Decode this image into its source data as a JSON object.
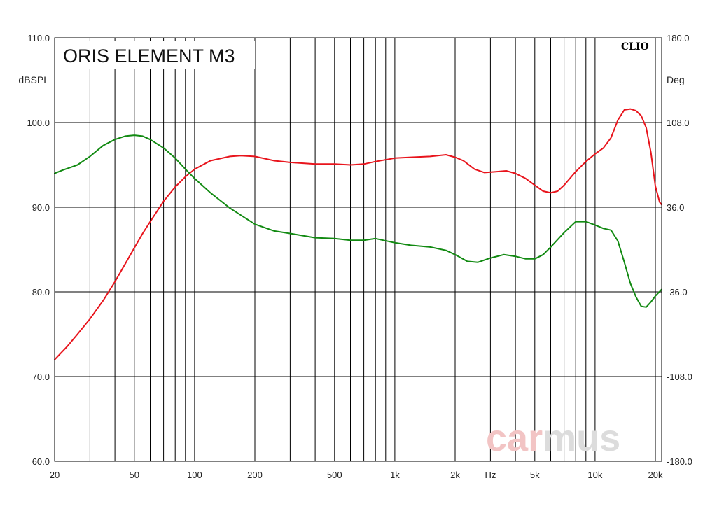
{
  "chart_data": {
    "type": "line",
    "title": "ORIS ELEMENT M3",
    "brand": "CLIO",
    "watermark": {
      "part1": "car",
      "part2": "mus",
      "color1": "#f2c4c4",
      "color2": "#dcdcdc"
    },
    "xlabel": "Hz",
    "ylabel_left": "dBSPL",
    "ylabel_right": "Deg",
    "xscale": "log",
    "xlim": [
      20,
      21500
    ],
    "ylim_left": [
      60,
      110
    ],
    "ylim_right": [
      -180,
      180
    ],
    "grid": true,
    "x_ticks": [
      "20",
      "50",
      "100",
      "200",
      "500",
      "1k",
      "2k",
      "Hz",
      "5k",
      "10k",
      "20k"
    ],
    "y_ticks_left": [
      "110.0",
      "100.0",
      "90.0",
      "80.0",
      "70.0",
      "60.0"
    ],
    "y_ticks_right": [
      "180.0",
      "108.0",
      "36.0",
      "-36.0",
      "-108.0",
      "-180.0"
    ],
    "series": [
      {
        "color": "#e8141c",
        "axis": "left",
        "points": [
          [
            20,
            72.0
          ],
          [
            23,
            73.5
          ],
          [
            26,
            75.0
          ],
          [
            30,
            76.8
          ],
          [
            35,
            79.0
          ],
          [
            40,
            81.2
          ],
          [
            45,
            83.3
          ],
          [
            50,
            85.2
          ],
          [
            55,
            86.9
          ],
          [
            60,
            88.3
          ],
          [
            70,
            90.7
          ],
          [
            80,
            92.4
          ],
          [
            90,
            93.6
          ],
          [
            100,
            94.5
          ],
          [
            120,
            95.5
          ],
          [
            150,
            96.0
          ],
          [
            170,
            96.1
          ],
          [
            200,
            96.0
          ],
          [
            250,
            95.5
          ],
          [
            300,
            95.3
          ],
          [
            400,
            95.1
          ],
          [
            500,
            95.1
          ],
          [
            600,
            95.0
          ],
          [
            700,
            95.1
          ],
          [
            800,
            95.4
          ],
          [
            1000,
            95.8
          ],
          [
            1200,
            95.9
          ],
          [
            1500,
            96.0
          ],
          [
            1800,
            96.2
          ],
          [
            2000,
            95.9
          ],
          [
            2200,
            95.5
          ],
          [
            2500,
            94.5
          ],
          [
            2800,
            94.1
          ],
          [
            3200,
            94.2
          ],
          [
            3600,
            94.3
          ],
          [
            4000,
            94.0
          ],
          [
            4500,
            93.4
          ],
          [
            5000,
            92.6
          ],
          [
            5500,
            91.9
          ],
          [
            6000,
            91.7
          ],
          [
            6500,
            91.9
          ],
          [
            7000,
            92.6
          ],
          [
            8000,
            94.2
          ],
          [
            9000,
            95.4
          ],
          [
            10000,
            96.3
          ],
          [
            11000,
            97.0
          ],
          [
            12000,
            98.2
          ],
          [
            13000,
            100.3
          ],
          [
            14000,
            101.5
          ],
          [
            15000,
            101.6
          ],
          [
            16000,
            101.4
          ],
          [
            17000,
            100.8
          ],
          [
            18000,
            99.4
          ],
          [
            19000,
            96.5
          ],
          [
            20000,
            92.5
          ],
          [
            21000,
            90.6
          ],
          [
            21500,
            90.3
          ]
        ]
      },
      {
        "color": "#128a12",
        "axis": "left",
        "points": [
          [
            20,
            94.0
          ],
          [
            22,
            94.4
          ],
          [
            24,
            94.7
          ],
          [
            26,
            95.0
          ],
          [
            30,
            96.0
          ],
          [
            35,
            97.3
          ],
          [
            40,
            98.0
          ],
          [
            45,
            98.4
          ],
          [
            50,
            98.5
          ],
          [
            55,
            98.4
          ],
          [
            60,
            98.0
          ],
          [
            70,
            97.0
          ],
          [
            80,
            95.8
          ],
          [
            90,
            94.5
          ],
          [
            100,
            93.4
          ],
          [
            120,
            91.7
          ],
          [
            150,
            89.9
          ],
          [
            200,
            88.0
          ],
          [
            250,
            87.2
          ],
          [
            300,
            86.9
          ],
          [
            400,
            86.4
          ],
          [
            500,
            86.3
          ],
          [
            600,
            86.1
          ],
          [
            700,
            86.1
          ],
          [
            800,
            86.3
          ],
          [
            1000,
            85.8
          ],
          [
            1200,
            85.5
          ],
          [
            1500,
            85.3
          ],
          [
            1800,
            84.9
          ],
          [
            2000,
            84.4
          ],
          [
            2300,
            83.6
          ],
          [
            2600,
            83.5
          ],
          [
            3000,
            84.0
          ],
          [
            3500,
            84.4
          ],
          [
            4000,
            84.2
          ],
          [
            4500,
            83.9
          ],
          [
            5000,
            83.9
          ],
          [
            5500,
            84.4
          ],
          [
            6000,
            85.3
          ],
          [
            7000,
            87.0
          ],
          [
            8000,
            88.3
          ],
          [
            9000,
            88.3
          ],
          [
            10000,
            87.9
          ],
          [
            11000,
            87.5
          ],
          [
            12000,
            87.3
          ],
          [
            13000,
            86.0
          ],
          [
            14000,
            83.5
          ],
          [
            15000,
            81.0
          ],
          [
            16000,
            79.4
          ],
          [
            17000,
            78.3
          ],
          [
            18000,
            78.2
          ],
          [
            19000,
            78.8
          ],
          [
            20000,
            79.5
          ],
          [
            21500,
            80.3
          ]
        ]
      }
    ]
  }
}
